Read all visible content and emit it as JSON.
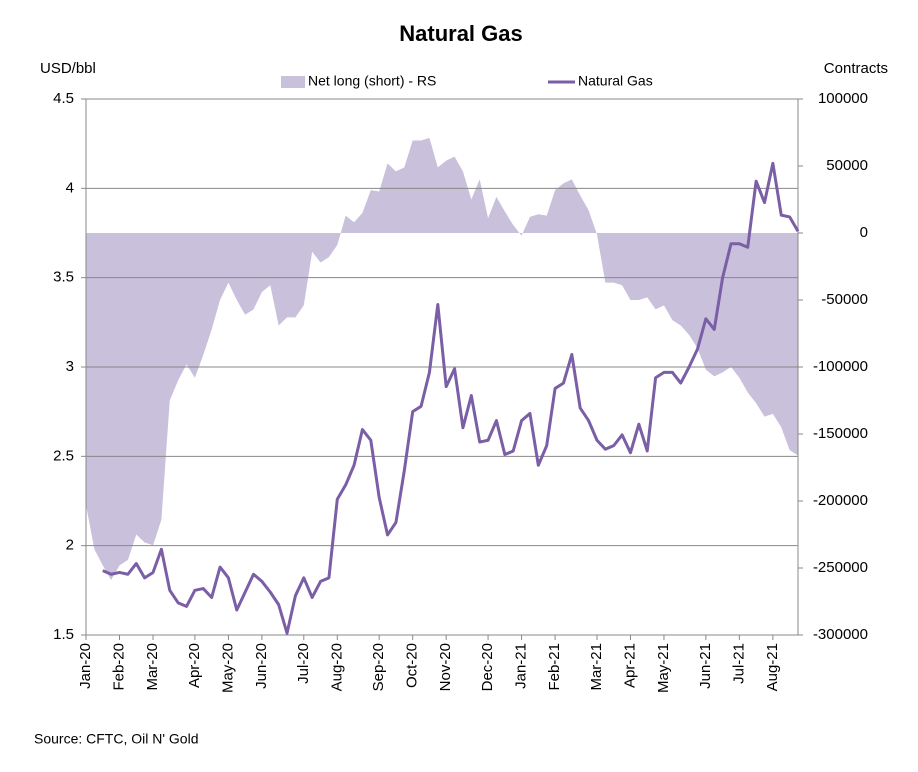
{
  "chart_data": {
    "type": "line",
    "title": "Natural Gas",
    "y_label": "USD/bbl",
    "y2_label": "Contracts",
    "source": "Source: CFTC, Oil N' Gold",
    "categories": [
      "Jan-20",
      null,
      null,
      null,
      "Feb-20",
      null,
      null,
      null,
      "Mar-20",
      null,
      null,
      null,
      null,
      "Apr-20",
      null,
      null,
      null,
      "May-20",
      null,
      null,
      null,
      "Jun-20",
      null,
      null,
      null,
      null,
      "Jul-20",
      null,
      null,
      null,
      "Aug-20",
      null,
      null,
      null,
      null,
      "Sep-20",
      null,
      null,
      null,
      "Oct-20",
      null,
      null,
      null,
      "Nov-20",
      null,
      null,
      null,
      null,
      "Dec-20",
      null,
      null,
      null,
      "Jan-21",
      null,
      null,
      null,
      "Feb-21",
      null,
      null,
      null,
      null,
      "Mar-21",
      null,
      null,
      null,
      "Apr-21",
      null,
      null,
      null,
      "May-21",
      null,
      null,
      null,
      null,
      "Jun-21",
      null,
      null,
      null,
      "Jul-21",
      null,
      null,
      null,
      "Aug-21",
      null,
      null,
      null
    ],
    "series": [
      {
        "name": "Net long (short) - RS",
        "type": "area",
        "axis": "y2",
        "color": "#c9c0dc",
        "values": [
          -203000,
          -236000,
          -248000,
          -259000,
          -248000,
          -244000,
          -225000,
          -231000,
          -233000,
          -214000,
          -125000,
          -110000,
          -98000,
          -108000,
          -91000,
          -72000,
          -50000,
          -37000,
          -50000,
          -61000,
          -57000,
          -44000,
          -39000,
          -69000,
          -63000,
          -63000,
          -54000,
          -14000,
          -22000,
          -18000,
          -9000,
          13000,
          8000,
          15000,
          32000,
          31000,
          52000,
          46000,
          49000,
          69000,
          69000,
          71000,
          49000,
          54000,
          57000,
          46000,
          25000,
          40000,
          11000,
          27000,
          16000,
          6000,
          -2000,
          12000,
          14000,
          13000,
          32000,
          37000,
          40000,
          28000,
          17000,
          -1000,
          -37000,
          -37000,
          -39000,
          -50000,
          -50000,
          -48000,
          -57000,
          -54000,
          -65000,
          -69000,
          -76000,
          -86000,
          -102000,
          -107000,
          -104000,
          -100000,
          -108000,
          -119000,
          -127000,
          -137000,
          -135000,
          -145000,
          -162000,
          -166000
        ]
      },
      {
        "name": "Natural Gas",
        "type": "line",
        "axis": "y",
        "color": "#7a5ea6",
        "values": [
          null,
          null,
          1.86,
          1.84,
          1.85,
          1.84,
          1.9,
          1.82,
          1.85,
          1.98,
          1.75,
          1.68,
          1.66,
          1.75,
          1.76,
          1.71,
          1.88,
          1.82,
          1.64,
          1.74,
          1.84,
          1.8,
          1.74,
          1.67,
          1.51,
          1.72,
          1.82,
          1.71,
          1.8,
          1.82,
          2.26,
          2.34,
          2.45,
          2.65,
          2.59,
          2.27,
          2.06,
          2.13,
          2.42,
          2.75,
          2.78,
          2.97,
          3.35,
          2.89,
          2.99,
          2.66,
          2.84,
          2.58,
          2.59,
          2.7,
          2.51,
          2.53,
          2.7,
          2.74,
          2.45,
          2.56,
          2.88,
          2.91,
          3.07,
          2.77,
          2.7,
          2.59,
          2.54,
          2.56,
          2.62,
          2.52,
          2.68,
          2.53,
          2.94,
          2.97,
          2.97,
          2.91,
          3.0,
          3.1,
          3.27,
          3.21,
          3.5,
          3.69,
          3.69,
          3.67,
          4.04,
          3.92,
          4.14,
          3.85,
          3.84,
          3.76
        ]
      }
    ],
    "ylim": [
      1.5,
      4.5
    ],
    "yticks": [
      1.5,
      2,
      2.5,
      3,
      3.5,
      4,
      4.5
    ],
    "y2lim": [
      -300000,
      100000
    ],
    "y2ticks": [
      -300000,
      -250000,
      -200000,
      -150000,
      -100000,
      -50000,
      0,
      50000,
      100000
    ],
    "grid": true,
    "legend": "top"
  }
}
